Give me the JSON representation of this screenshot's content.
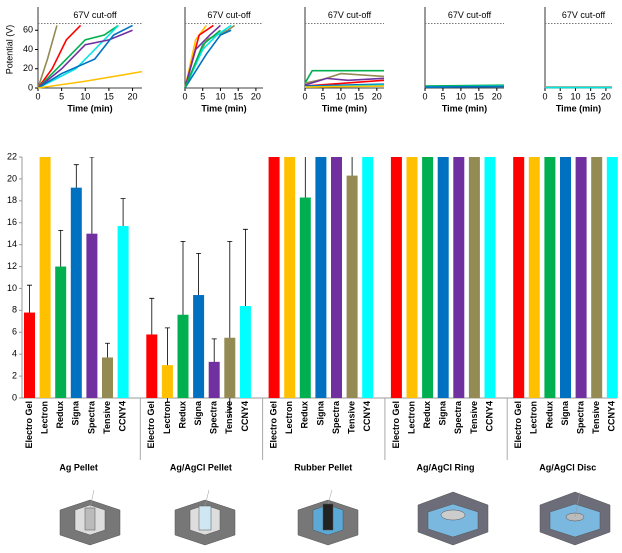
{
  "chart_data": [
    {
      "type": "line",
      "ylabel": "Potential (V)",
      "xlabel": "Time (min)",
      "annotation": "67V cut-off",
      "reference_line": 67,
      "xlim": [
        0,
        22
      ],
      "xticks": [
        0,
        5,
        10,
        15,
        20
      ],
      "ylim": [
        0,
        80
      ],
      "yticks": [
        0,
        20,
        40,
        60
      ],
      "series": [
        {
          "color": "#948a54",
          "x": [
            0,
            2,
            4
          ],
          "values": [
            0,
            30,
            65
          ]
        },
        {
          "color": "#ff0000",
          "x": [
            0,
            3,
            6,
            9
          ],
          "values": [
            0,
            20,
            50,
            65
          ]
        },
        {
          "color": "#00b050",
          "x": [
            0,
            5,
            10,
            14,
            17
          ],
          "values": [
            0,
            25,
            50,
            55,
            65
          ]
        },
        {
          "color": "#00e5e5",
          "x": [
            0,
            8,
            14,
            17
          ],
          "values": [
            0,
            20,
            50,
            65
          ]
        },
        {
          "color": "#7030a0",
          "x": [
            0,
            5,
            10,
            15,
            20
          ],
          "values": [
            0,
            20,
            45,
            50,
            60
          ]
        },
        {
          "color": "#0070c0",
          "x": [
            0,
            5,
            12,
            16,
            20
          ],
          "values": [
            0,
            15,
            30,
            55,
            65
          ]
        },
        {
          "color": "#ffc000",
          "x": [
            0,
            10,
            22
          ],
          "values": [
            0,
            7,
            17
          ]
        }
      ]
    },
    {
      "type": "line",
      "xlabel": "Time (min)",
      "annotation": "67V cut-off",
      "reference_line": 67,
      "xlim": [
        0,
        22
      ],
      "xticks": [
        0,
        5,
        10,
        15,
        20
      ],
      "ylim": [
        0,
        80
      ],
      "series": [
        {
          "color": "#ffc000",
          "x": [
            0,
            3,
            6
          ],
          "values": [
            0,
            50,
            65
          ]
        },
        {
          "color": "#ff0000",
          "x": [
            0,
            4,
            8
          ],
          "values": [
            0,
            55,
            65
          ]
        },
        {
          "color": "#7030a0",
          "x": [
            0,
            3,
            7,
            10
          ],
          "values": [
            0,
            40,
            55,
            65
          ]
        },
        {
          "color": "#948a54",
          "x": [
            0,
            6,
            12,
            14
          ],
          "values": [
            0,
            50,
            60,
            65
          ]
        },
        {
          "color": "#00e5e5",
          "x": [
            0,
            5,
            9,
            13
          ],
          "values": [
            0,
            40,
            55,
            65
          ]
        },
        {
          "color": "#0070c0",
          "x": [
            0,
            6,
            10,
            13
          ],
          "values": [
            0,
            35,
            55,
            60
          ]
        },
        {
          "color": "#00b050",
          "x": [
            0,
            5,
            10
          ],
          "values": [
            0,
            45,
            60
          ]
        }
      ]
    },
    {
      "type": "line",
      "xlabel": "Time (min)",
      "annotation": "67V cut-off",
      "reference_line": 67,
      "xlim": [
        0,
        22
      ],
      "xticks": [
        0,
        5,
        10,
        15,
        20
      ],
      "ylim": [
        0,
        80
      ],
      "series": [
        {
          "color": "#00b050",
          "x": [
            0,
            2,
            22
          ],
          "values": [
            5,
            18,
            18
          ]
        },
        {
          "color": "#948a54",
          "x": [
            0,
            5,
            10,
            22
          ],
          "values": [
            5,
            9,
            15,
            12
          ]
        },
        {
          "color": "#7030a0",
          "x": [
            0,
            6,
            12,
            22
          ],
          "values": [
            3,
            10,
            8,
            10
          ]
        },
        {
          "color": "#ff0000",
          "x": [
            0,
            22
          ],
          "values": [
            2,
            8
          ]
        },
        {
          "color": "#0070c0",
          "x": [
            0,
            22
          ],
          "values": [
            2,
            4
          ]
        },
        {
          "color": "#00e5e5",
          "x": [
            0,
            22
          ],
          "values": [
            1,
            3
          ]
        },
        {
          "color": "#ffc000",
          "x": [
            0,
            22
          ],
          "values": [
            1,
            2
          ]
        }
      ]
    },
    {
      "type": "line",
      "xlabel": "Time (min)",
      "annotation": "67V cut-off",
      "reference_line": 67,
      "xlim": [
        0,
        22
      ],
      "xticks": [
        0,
        5,
        10,
        15,
        20
      ],
      "ylim": [
        0,
        80
      ],
      "series": [
        {
          "color": "#00b050",
          "x": [
            0,
            22
          ],
          "values": [
            2,
            3
          ]
        },
        {
          "color": "#00e5e5",
          "x": [
            0,
            22
          ],
          "values": [
            1,
            2
          ]
        },
        {
          "color": "#0070c0",
          "x": [
            0,
            22
          ],
          "values": [
            1,
            1.5
          ]
        }
      ]
    },
    {
      "type": "line",
      "xlabel": "Time (min)",
      "annotation": "67V cut-off",
      "reference_line": 67,
      "xlim": [
        0,
        22
      ],
      "xticks": [
        0,
        5,
        10,
        15,
        20
      ],
      "ylim": [
        0,
        80
      ],
      "series": [
        {
          "color": "#948a54",
          "x": [
            0,
            22
          ],
          "values": [
            1,
            1
          ]
        },
        {
          "color": "#00e5e5",
          "x": [
            0,
            22
          ],
          "values": [
            0.5,
            0.5
          ]
        }
      ]
    },
    {
      "type": "grouped_bar",
      "categories": [
        "Electro Gel",
        "Lectron",
        "Redux",
        "Signa",
        "Spectra",
        "Tensive",
        "CCNY4"
      ],
      "colors": [
        "#ff0000",
        "#ffc000",
        "#00b050",
        "#0070c0",
        "#7030a0",
        "#948a54",
        "#00ffff"
      ],
      "ylim": [
        0,
        22
      ],
      "yticks": [
        0,
        2,
        4,
        6,
        8,
        10,
        12,
        14,
        16,
        18,
        20,
        22
      ],
      "groups": [
        {
          "name": "Ag Pellet",
          "values": [
            7.8,
            22,
            12,
            19.2,
            15,
            3.7,
            15.7
          ],
          "errors": [
            2.5,
            null,
            3.3,
            2.1,
            7,
            1.3,
            2.5
          ]
        },
        {
          "name": "Ag/AgCl Pellet",
          "values": [
            5.8,
            3.0,
            7.6,
            9.4,
            3.3,
            5.5,
            8.4
          ],
          "errors": [
            3.3,
            3.4,
            6.7,
            3.8,
            2.1,
            8.8,
            7
          ]
        },
        {
          "name": "Rubber Pellet",
          "values": [
            22,
            22,
            18.3,
            22,
            22,
            20.3,
            22
          ],
          "errors": [
            null,
            null,
            15,
            null,
            null,
            6.8,
            null
          ]
        },
        {
          "name": "Ag/AgCl Ring",
          "values": [
            22,
            22,
            22,
            22,
            22,
            22,
            22
          ],
          "errors": [
            null,
            null,
            null,
            null,
            null,
            null,
            null
          ]
        },
        {
          "name": "Ag/AgCl Disc",
          "values": [
            22,
            22,
            22,
            22,
            22,
            22,
            22
          ],
          "errors": [
            null,
            null,
            null,
            null,
            null,
            null,
            null
          ]
        }
      ]
    }
  ]
}
